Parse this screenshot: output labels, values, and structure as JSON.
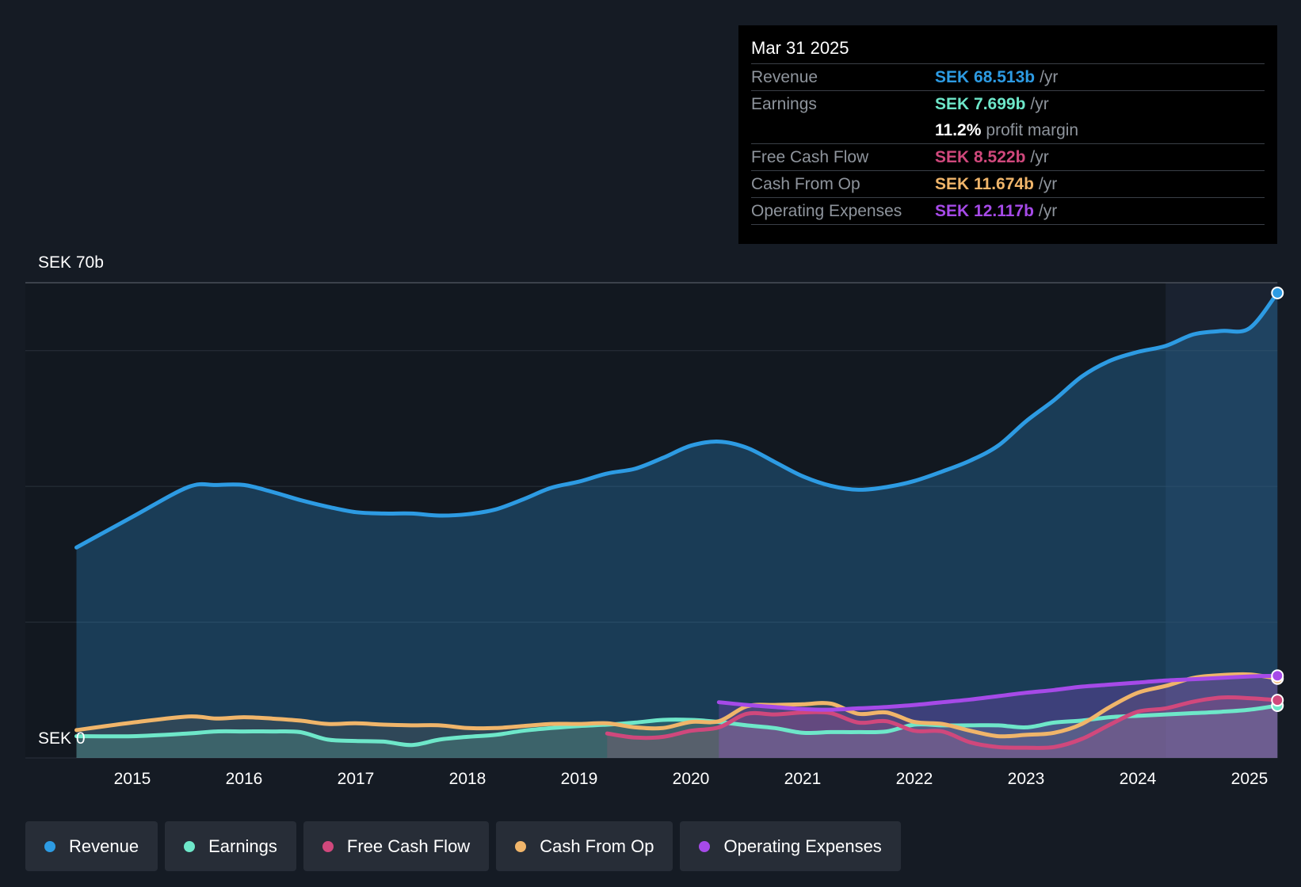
{
  "tooltip": {
    "date": "Mar 31 2025",
    "rows": [
      {
        "label": "Revenue",
        "value": "SEK 68.513b",
        "unit": "/yr",
        "color": "#2d9be3"
      },
      {
        "label": "Earnings",
        "value": "SEK 7.699b",
        "unit": "/yr",
        "color": "#6ee7c9"
      },
      {
        "label": "",
        "value": "11.2%",
        "unit": "profit margin",
        "color": "#ffffff"
      },
      {
        "label": "Free Cash Flow",
        "value": "SEK 8.522b",
        "unit": "/yr",
        "color": "#d0487c"
      },
      {
        "label": "Cash From Op",
        "value": "SEK 11.674b",
        "unit": "/yr",
        "color": "#f0b56a"
      },
      {
        "label": "Operating Expenses",
        "value": "SEK 12.117b",
        "unit": "/yr",
        "color": "#a64ae8"
      }
    ]
  },
  "legend": [
    {
      "label": "Revenue",
      "color": "#2d9be3"
    },
    {
      "label": "Earnings",
      "color": "#6ee7c9"
    },
    {
      "label": "Free Cash Flow",
      "color": "#d0487c"
    },
    {
      "label": "Cash From Op",
      "color": "#f0b56a"
    },
    {
      "label": "Operating Expenses",
      "color": "#a64ae8"
    }
  ],
  "chart_data": {
    "type": "area",
    "title": "",
    "xlabel": "",
    "ylabel": "",
    "ylim": [
      0,
      70
    ],
    "y_top_label": "SEK 70b",
    "y_bottom_label": "SEK 0",
    "xlim": [
      2014.5,
      2025.25
    ],
    "forecast_start": 2024.25,
    "x_ticks": [
      "2015",
      "2016",
      "2017",
      "2018",
      "2019",
      "2020",
      "2021",
      "2022",
      "2023",
      "2024",
      "2025"
    ],
    "series": [
      {
        "name": "Revenue",
        "color": "#2d9be3",
        "x": [
          2014.5,
          2015.0,
          2015.5,
          2015.75,
          2016.0,
          2016.25,
          2016.5,
          2016.75,
          2017.0,
          2017.25,
          2017.5,
          2017.75,
          2018.0,
          2018.25,
          2018.5,
          2018.75,
          2019.0,
          2019.25,
          2019.5,
          2019.75,
          2020.0,
          2020.25,
          2020.5,
          2020.75,
          2021.0,
          2021.25,
          2021.5,
          2021.75,
          2022.0,
          2022.25,
          2022.5,
          2022.75,
          2023.0,
          2023.25,
          2023.5,
          2023.75,
          2024.0,
          2024.25,
          2024.5,
          2024.75,
          2025.0,
          2025.25
        ],
        "values": [
          31.0,
          35.5,
          39.9,
          40.2,
          40.2,
          39.2,
          38.0,
          37.0,
          36.2,
          36.0,
          36.0,
          35.7,
          35.9,
          36.6,
          38.1,
          39.8,
          40.7,
          41.9,
          42.6,
          44.2,
          46.0,
          46.6,
          45.7,
          43.6,
          41.5,
          40.1,
          39.5,
          39.9,
          40.8,
          42.2,
          43.8,
          46.0,
          49.6,
          52.7,
          56.2,
          58.5,
          59.8,
          60.7,
          62.4,
          62.9,
          63.3,
          68.5
        ]
      },
      {
        "name": "Earnings",
        "color": "#6ee7c9",
        "x": [
          2014.5,
          2015.0,
          2015.5,
          2015.75,
          2016.0,
          2016.25,
          2016.5,
          2016.75,
          2017.0,
          2017.25,
          2017.5,
          2017.75,
          2018.0,
          2018.25,
          2018.5,
          2018.75,
          2019.0,
          2019.25,
          2019.5,
          2019.75,
          2020.0,
          2020.25,
          2020.5,
          2020.75,
          2021.0,
          2021.25,
          2021.5,
          2021.75,
          2022.0,
          2022.25,
          2022.5,
          2022.75,
          2023.0,
          2023.25,
          2023.5,
          2023.75,
          2024.0,
          2024.25,
          2024.5,
          2024.75,
          2025.0,
          2025.25
        ],
        "values": [
          3.2,
          3.2,
          3.6,
          3.9,
          3.9,
          3.9,
          3.8,
          2.7,
          2.5,
          2.4,
          1.9,
          2.7,
          3.1,
          3.4,
          4.0,
          4.4,
          4.7,
          4.9,
          5.2,
          5.6,
          5.6,
          5.3,
          4.8,
          4.4,
          3.7,
          3.8,
          3.8,
          3.9,
          4.9,
          4.8,
          4.8,
          4.8,
          4.5,
          5.2,
          5.5,
          6.0,
          6.2,
          6.4,
          6.6,
          6.8,
          7.1,
          7.7
        ]
      },
      {
        "name": "Free Cash Flow",
        "color": "#d0487c",
        "x": [
          2019.25,
          2019.5,
          2019.75,
          2020.0,
          2020.25,
          2020.5,
          2020.75,
          2021.0,
          2021.25,
          2021.5,
          2021.75,
          2022.0,
          2022.25,
          2022.5,
          2022.75,
          2023.0,
          2023.25,
          2023.5,
          2023.75,
          2024.0,
          2024.25,
          2024.5,
          2024.75,
          2025.0,
          2025.25
        ],
        "values": [
          3.6,
          3.0,
          3.1,
          4.0,
          4.5,
          6.5,
          6.4,
          6.7,
          6.6,
          5.2,
          5.4,
          4.0,
          3.9,
          2.3,
          1.6,
          1.5,
          1.6,
          2.8,
          4.9,
          6.8,
          7.3,
          8.3,
          8.9,
          8.8,
          8.5
        ]
      },
      {
        "name": "Cash From Op",
        "color": "#f0b56a",
        "x": [
          2014.5,
          2015.0,
          2015.5,
          2015.75,
          2016.0,
          2016.25,
          2016.5,
          2016.75,
          2017.0,
          2017.25,
          2017.5,
          2017.75,
          2018.0,
          2018.25,
          2018.5,
          2018.75,
          2019.0,
          2019.25,
          2019.5,
          2019.75,
          2020.0,
          2020.25,
          2020.5,
          2020.75,
          2021.0,
          2021.25,
          2021.5,
          2021.75,
          2022.0,
          2022.25,
          2022.5,
          2022.75,
          2023.0,
          2023.25,
          2023.5,
          2023.75,
          2024.0,
          2024.25,
          2024.5,
          2024.75,
          2025.0,
          2025.25
        ],
        "values": [
          4.1,
          5.2,
          6.1,
          5.8,
          6.0,
          5.8,
          5.5,
          5.0,
          5.1,
          4.9,
          4.8,
          4.8,
          4.4,
          4.4,
          4.7,
          5.0,
          5.0,
          5.1,
          4.5,
          4.4,
          5.3,
          5.4,
          7.6,
          7.8,
          7.9,
          8.0,
          6.5,
          6.7,
          5.3,
          5.0,
          4.0,
          3.2,
          3.4,
          3.7,
          5.0,
          7.5,
          9.6,
          10.6,
          11.8,
          12.2,
          12.3,
          11.7
        ]
      },
      {
        "name": "Operating Expenses",
        "color": "#a64ae8",
        "x": [
          2020.25,
          2020.5,
          2020.75,
          2021.0,
          2021.25,
          2021.5,
          2021.75,
          2022.0,
          2022.25,
          2022.5,
          2022.75,
          2023.0,
          2023.25,
          2023.5,
          2023.75,
          2024.0,
          2024.25,
          2024.5,
          2024.75,
          2025.0,
          2025.25
        ],
        "values": [
          8.2,
          7.8,
          7.5,
          7.2,
          7.1,
          7.3,
          7.5,
          7.8,
          8.2,
          8.6,
          9.1,
          9.6,
          10.0,
          10.5,
          10.8,
          11.1,
          11.4,
          11.6,
          11.8,
          12.0,
          12.1
        ]
      }
    ]
  }
}
